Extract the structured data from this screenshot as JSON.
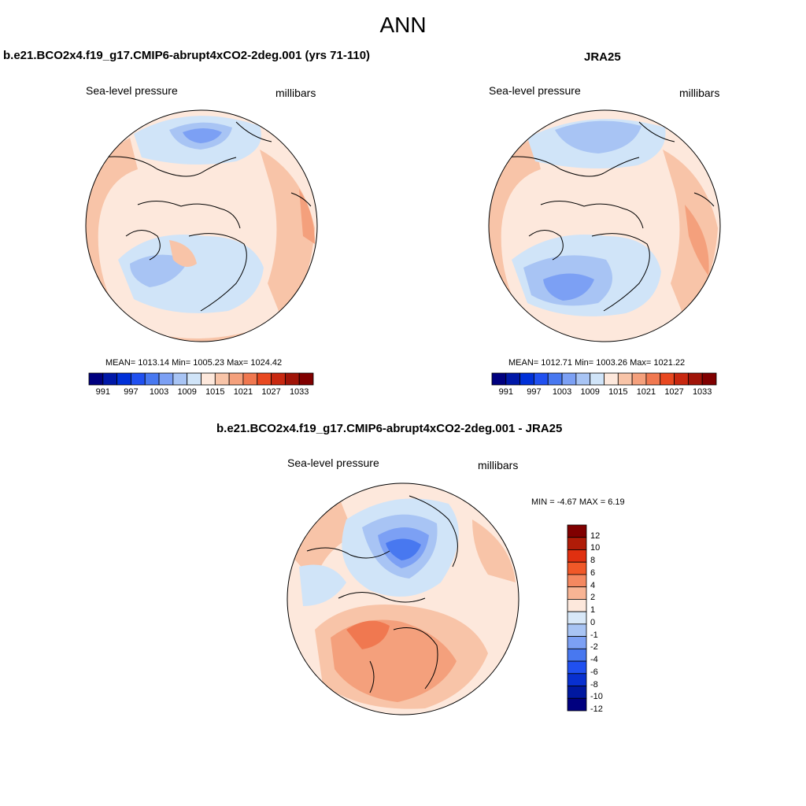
{
  "main_title": "ANN",
  "panels": [
    {
      "title": "b.e21.BCO2x4.f19_g17.CMIP6-abrupt4xCO2-2deg.001 (yrs 71-110)",
      "variable": "Sea-level pressure",
      "units": "millibars",
      "stats": "MEAN= 1013.14  Min= 1005.23  Max= 1024.42",
      "labelbar": [
        "991",
        "997",
        "1003",
        "1009",
        "1015",
        "1021",
        "1027",
        "1033"
      ]
    },
    {
      "title": "JRA25",
      "variable": "Sea-level pressure",
      "units": "millibars",
      "stats": "MEAN= 1012.71  Min= 1003.26  Max= 1021.22",
      "labelbar": [
        "991",
        "997",
        "1003",
        "1009",
        "1015",
        "1021",
        "1027",
        "1033"
      ]
    },
    {
      "title": "b.e21.BCO2x4.f19_g17.CMIP6-abrupt4xCO2-2deg.001 - JRA25",
      "variable": "Sea-level pressure",
      "units": "millibars",
      "stats": "MIN =  -4.67 MAX =   6.19",
      "labelbar": [
        "12",
        "10",
        "8",
        "6",
        "4",
        "2",
        "1",
        "0",
        "-1",
        "-2",
        "-4",
        "-6",
        "-8",
        "-10",
        "-12"
      ]
    }
  ],
  "colors": {
    "levels_palette": [
      "#00007f",
      "#0018a8",
      "#0030d8",
      "#2050f0",
      "#4878f0",
      "#7ca0f4",
      "#a8c4f4",
      "#d0e4f8",
      "#fde8dc",
      "#f8c4a8",
      "#f4a07c",
      "#f07850",
      "#e84820",
      "#c82810",
      "#a01408",
      "#800000"
    ],
    "diff_palette": [
      "#800000",
      "#b01c08",
      "#e03010",
      "#f05828",
      "#f48860",
      "#f8b494",
      "#fde8dc",
      "#d8e8f8",
      "#a8c4f4",
      "#7ca0f4",
      "#4878f0",
      "#2050f0",
      "#0830d0",
      "#0018a0",
      "#00007f"
    ]
  }
}
